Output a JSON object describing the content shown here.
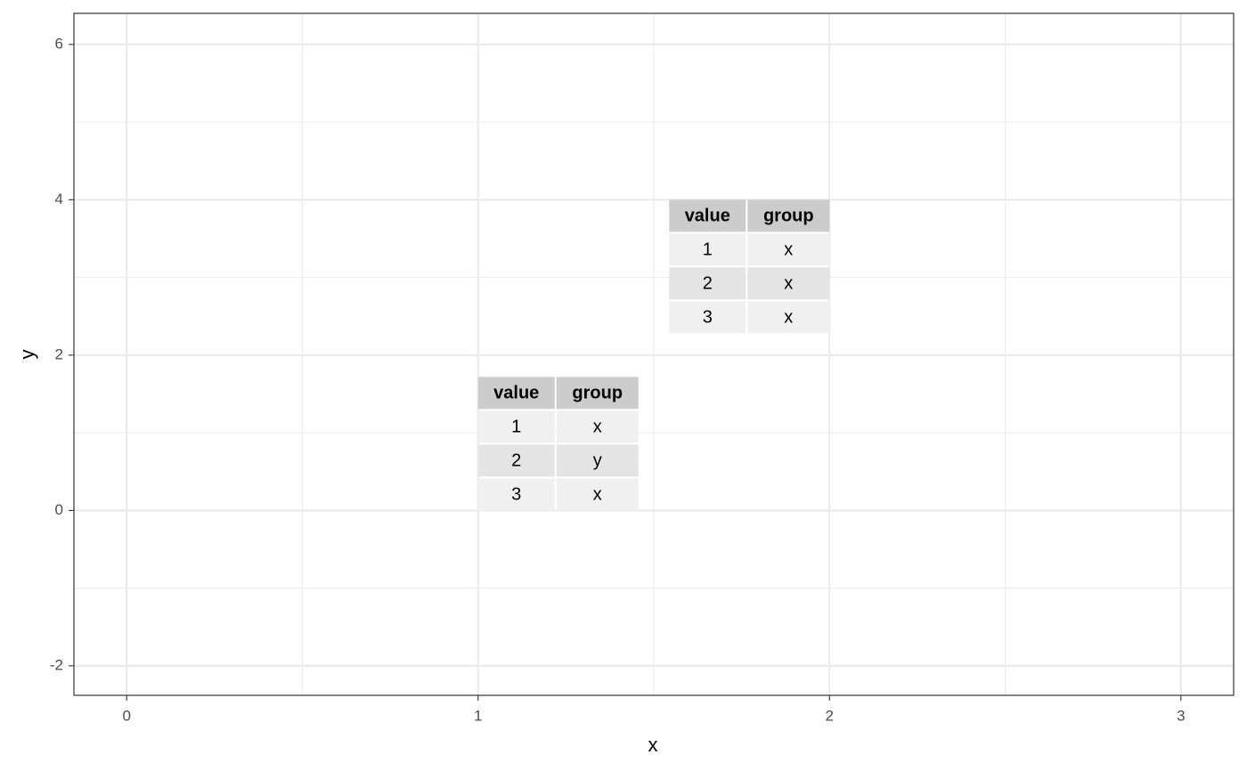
{
  "chart_data": {
    "type": "table",
    "x_label": "x",
    "y_label": "y",
    "xlim": [
      -0.15,
      3.15
    ],
    "ylim": [
      -2.38,
      6.4
    ],
    "xticks": [
      0,
      1,
      2,
      3
    ],
    "yticks": [
      -2,
      0,
      2,
      4,
      6
    ],
    "grid": true,
    "tables": [
      {
        "x": 1,
        "y": 0,
        "columns": [
          "value",
          "group"
        ],
        "rows": [
          [
            1,
            "x"
          ],
          [
            2,
            "y"
          ],
          [
            3,
            "x"
          ]
        ]
      },
      {
        "x": 2,
        "y": 4,
        "columns": [
          "value",
          "group"
        ],
        "rows": [
          [
            1,
            "x"
          ],
          [
            2,
            "x"
          ],
          [
            3,
            "x"
          ]
        ]
      }
    ]
  }
}
